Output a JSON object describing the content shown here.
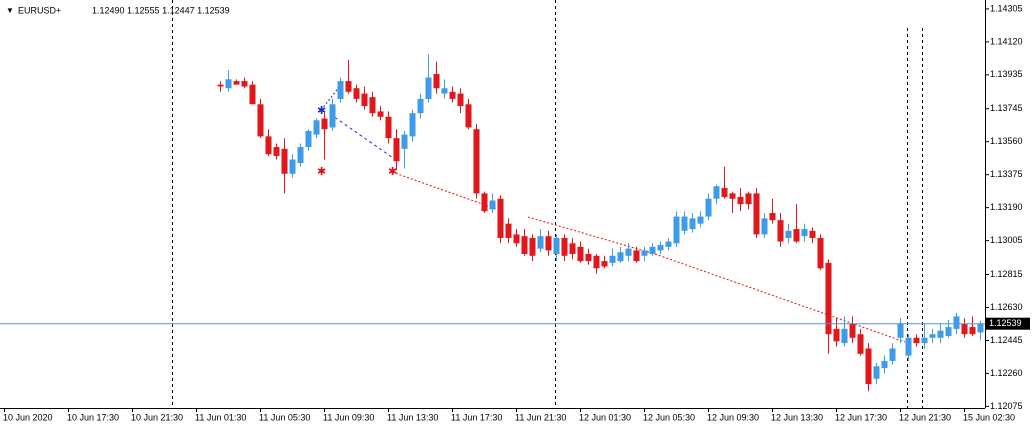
{
  "chart_data": {
    "type": "candlestick",
    "title": "EURUSD+",
    "subtitle": "1.12490 1.12555 1.12447 1.12539",
    "up_color": "#3d9be9",
    "down_color": "#e3161b",
    "grid": false,
    "ylim": [
      1.12066,
      1.14355
    ],
    "yticks": [
      1.14305,
      {
        "value": 1.1412,
        "label": "1.14120"
      },
      1.13935,
      1.13745,
      {
        "value": 1.1356,
        "label": "1.13560"
      },
      1.13375,
      {
        "value": 1.1319,
        "label": "1.13190"
      },
      1.13005,
      1.12815,
      {
        "value": 1.1263,
        "label": "1.12630"
      },
      1.12445,
      {
        "value": 1.1226,
        "label": "1.12260"
      },
      1.12075
    ],
    "current_price": 1.12539,
    "categories": [
      "10 Jun 2020",
      null,
      null,
      null,
      null,
      null,
      null,
      null,
      "10 Jun 17:30",
      null,
      null,
      null,
      null,
      null,
      null,
      null,
      "10 Jun 21:30",
      null,
      null,
      null,
      null,
      null,
      null,
      null,
      "11 Jun 01:30",
      null,
      null,
      null,
      null,
      null,
      null,
      null,
      "11 Jun 05:30",
      null,
      null,
      null,
      null,
      null,
      null,
      null,
      "11 Jun 09:30",
      null,
      null,
      null,
      null,
      null,
      null,
      null,
      "11 Jun 13:30",
      null,
      null,
      null,
      null,
      null,
      null,
      null,
      "11 Jun 17:30",
      null,
      null,
      null,
      null,
      null,
      null,
      null,
      "11 Jun 21:30",
      null,
      null,
      null,
      null,
      null,
      null,
      null,
      "12 Jun 01:30",
      null,
      null,
      null,
      null,
      null,
      null,
      null,
      "12 Jun 05:30",
      null,
      null,
      null,
      null,
      null,
      null,
      null,
      "12 Jun 09:30",
      null,
      null,
      null,
      null,
      null,
      null,
      null,
      "12 Jun 13:30",
      null,
      null,
      null,
      null,
      null,
      null,
      null,
      "12 Jun 17:30",
      null,
      null,
      null,
      null,
      null,
      null,
      null,
      "12 Jun 21:30",
      null,
      null,
      null,
      null,
      null,
      null,
      null,
      "15 Jun 02:30",
      null,
      null
    ],
    "open": [
      null,
      null,
      null,
      null,
      null,
      null,
      null,
      null,
      null,
      null,
      null,
      null,
      null,
      null,
      null,
      null,
      null,
      null,
      null,
      null,
      null,
      null,
      null,
      null,
      null,
      null,
      null,
      1.1388,
      1.1386,
      1.139,
      1.139,
      1.1388,
      1.1377,
      1.1359,
      1.1353,
      1.1352,
      1.1338,
      1.1344,
      1.1353,
      1.136,
      1.1369,
      1.1364,
      1.138,
      1.139,
      1.1386,
      1.1383,
      1.1381,
      1.1373,
      1.137,
      1.1358,
      1.1352,
      1.1359,
      1.1372,
      1.138,
      1.1394,
      1.1383,
      1.1384,
      1.1383,
      1.1377,
      1.1363,
      1.1327,
      1.1318,
      1.1324,
      1.131,
      1.1304,
      1.1303,
      1.1302,
      1.1296,
      1.1303,
      1.1293,
      1.1302,
      1.1299,
      1.1297,
      1.1293,
      1.1292,
      1.1289,
      1.1288,
      1.1289,
      1.1292,
      1.1295,
      1.1292,
      1.1293,
      1.1295,
      1.1297,
      1.1299,
      1.1306,
      1.1307,
      1.131,
      1.1314,
      1.1324,
      1.133,
      1.1327,
      1.1325,
      1.1327,
      1.1327,
      1.1304,
      1.1316,
      1.1312,
      1.1302,
      1.1307,
      1.1303,
      1.1306,
      1.1302,
      1.1288,
      1.1251,
      1.1243,
      1.1254,
      1.1248,
      1.124,
      1.1223,
      1.1229,
      1.1233,
      1.1246,
      1.1236,
      1.1246,
      1.1243,
      1.1246,
      1.1246,
      1.1247,
      1.1251,
      1.1254,
      1.1252,
      1.1249
    ],
    "high": [
      null,
      null,
      null,
      null,
      null,
      null,
      null,
      null,
      null,
      null,
      null,
      null,
      null,
      null,
      null,
      null,
      null,
      null,
      null,
      null,
      null,
      null,
      null,
      null,
      null,
      null,
      null,
      1.139,
      1.1396,
      1.1391,
      1.1392,
      1.139,
      1.138,
      1.1363,
      1.1355,
      1.1358,
      1.1349,
      1.1355,
      1.1363,
      1.1369,
      1.1373,
      1.138,
      1.1392,
      1.1402,
      1.1388,
      1.1387,
      1.1384,
      1.1376,
      1.1373,
      1.1363,
      1.1362,
      1.1374,
      1.1383,
      1.1405,
      1.1401,
      1.1391,
      1.1387,
      1.1386,
      1.138,
      1.1366,
      1.1328,
      1.1327,
      1.1326,
      1.1313,
      1.1307,
      1.1307,
      1.1304,
      1.1307,
      1.1306,
      1.1304,
      1.1304,
      1.1302,
      1.13,
      1.1296,
      1.1293,
      1.1292,
      1.1296,
      1.1297,
      1.1299,
      1.1297,
      1.1297,
      1.1299,
      1.13,
      1.1302,
      1.1317,
      1.1317,
      1.1316,
      1.1317,
      1.1327,
      1.1332,
      1.1342,
      1.1328,
      1.133,
      1.1328,
      1.133,
      1.1316,
      1.1324,
      1.1316,
      1.131,
      1.1321,
      1.131,
      1.1308,
      1.1304,
      1.129,
      1.1257,
      1.1258,
      1.1258,
      1.1251,
      1.1243,
      1.1232,
      1.1236,
      1.1243,
      1.1257,
      1.1248,
      1.1248,
      1.1254,
      1.1251,
      1.1254,
      1.1256,
      1.126,
      1.1257,
      1.1258,
      1.12555
    ],
    "low": [
      null,
      null,
      null,
      null,
      null,
      null,
      null,
      null,
      null,
      null,
      null,
      null,
      null,
      null,
      null,
      null,
      null,
      null,
      null,
      null,
      null,
      null,
      null,
      null,
      null,
      null,
      null,
      1.1384,
      1.1384,
      1.1388,
      1.1386,
      1.1377,
      1.1358,
      1.1348,
      1.1346,
      1.1327,
      1.1336,
      1.1342,
      1.1351,
      1.1358,
      1.1346,
      1.1362,
      1.1378,
      1.1383,
      1.1378,
      1.1374,
      1.137,
      1.1368,
      1.1355,
      1.134,
      1.1341,
      1.1356,
      1.1369,
      1.1378,
      1.1383,
      1.138,
      1.1378,
      1.1372,
      1.1363,
      1.1324,
      1.1316,
      1.1316,
      1.1299,
      1.1299,
      1.1297,
      1.1292,
      1.1289,
      1.1294,
      1.1292,
      1.1289,
      1.1289,
      1.129,
      1.1288,
      1.1287,
      1.1282,
      1.1285,
      1.1286,
      1.1288,
      1.1289,
      1.1288,
      1.1289,
      1.1292,
      1.1293,
      1.1295,
      1.1297,
      1.1304,
      1.1305,
      1.1308,
      1.1312,
      1.1321,
      1.1324,
      1.1316,
      1.1317,
      1.1318,
      1.1302,
      1.1302,
      1.131,
      1.1297,
      1.1299,
      1.1299,
      1.13,
      1.1299,
      1.1284,
      1.1237,
      1.1241,
      1.1241,
      1.1243,
      1.1236,
      1.1216,
      1.122,
      1.1226,
      1.1231,
      1.1243,
      1.1233,
      1.1241,
      1.124,
      1.1243,
      1.1243,
      1.1246,
      1.1248,
      1.1246,
      1.1247,
      1.12447
    ],
    "close": [
      null,
      null,
      null,
      null,
      null,
      null,
      null,
      null,
      null,
      null,
      null,
      null,
      null,
      null,
      null,
      null,
      null,
      null,
      null,
      null,
      null,
      null,
      null,
      null,
      null,
      null,
      null,
      1.1387,
      1.1391,
      1.1388,
      1.1387,
      1.1377,
      1.1359,
      1.1349,
      1.1348,
      1.1338,
      1.1346,
      1.1353,
      1.1362,
      1.1368,
      1.1363,
      1.1377,
      1.139,
      1.1384,
      1.138,
      1.1376,
      1.1372,
      1.137,
      1.1358,
      1.1345,
      1.136,
      1.1372,
      1.138,
      1.1392,
      1.1386,
      1.1386,
      1.138,
      1.1376,
      1.1364,
      1.1327,
      1.1317,
      1.1323,
      1.1302,
      1.1302,
      1.1299,
      1.1293,
      1.1292,
      1.1303,
      1.1295,
      1.1302,
      1.1292,
      1.1293,
      1.1289,
      1.1289,
      1.1285,
      1.1286,
      1.1292,
      1.1294,
      1.1296,
      1.1289,
      1.1295,
      1.1297,
      1.1298,
      1.13,
      1.1314,
      1.1314,
      1.1313,
      1.1314,
      1.1324,
      1.1331,
      1.1325,
      1.1324,
      1.1321,
      1.1321,
      1.1304,
      1.1313,
      1.1312,
      1.13,
      1.1306,
      1.13,
      1.1307,
      1.1302,
      1.1285,
      1.1248,
      1.1244,
      1.1251,
      1.1246,
      1.1237,
      1.122,
      1.123,
      1.1233,
      1.124,
      1.1254,
      1.1246,
      1.1243,
      1.1246,
      1.1248,
      1.125,
      1.1252,
      1.1258,
      1.1248,
      1.1248,
      1.12539
    ]
  }
}
